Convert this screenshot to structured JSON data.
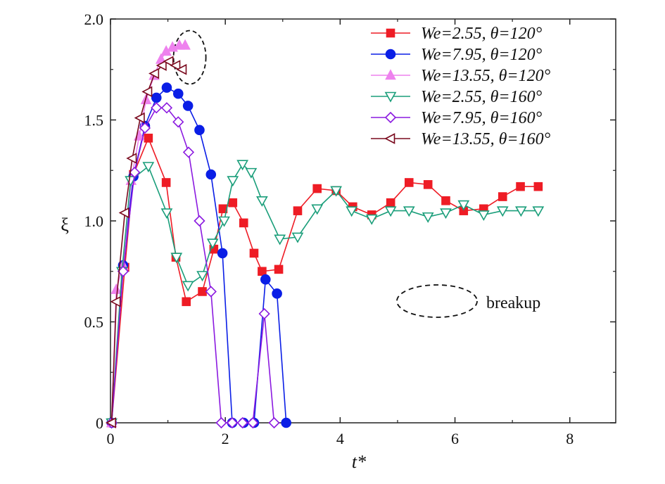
{
  "chart_data": {
    "type": "line",
    "xlabel": "t*",
    "ylabel": "ξ",
    "xlim": [
      0,
      8.8
    ],
    "ylim": [
      0,
      2.0
    ],
    "xticks": [
      "0",
      "2",
      "4",
      "6",
      "8"
    ],
    "yticks": [
      "0",
      "0.5",
      "1.0",
      "1.5",
      "2.0"
    ],
    "grid": false,
    "legend_position": "top-right",
    "series": [
      {
        "name": "We=2.55, θ=120°",
        "color": "#ee1c25",
        "marker": "square",
        "filled": true,
        "points": [
          [
            0.02,
            0.0
          ],
          [
            0.25,
            0.77
          ],
          [
            0.4,
            1.23
          ],
          [
            0.66,
            1.41
          ],
          [
            0.97,
            1.19
          ],
          [
            1.14,
            0.82
          ],
          [
            1.32,
            0.6
          ],
          [
            1.6,
            0.65
          ],
          [
            1.8,
            0.86
          ],
          [
            1.96,
            1.06
          ],
          [
            2.13,
            1.09
          ],
          [
            2.32,
            0.99
          ],
          [
            2.5,
            0.84
          ],
          [
            2.64,
            0.75
          ],
          [
            2.93,
            0.76
          ],
          [
            3.26,
            1.05
          ],
          [
            3.6,
            1.16
          ],
          [
            3.93,
            1.15
          ],
          [
            4.22,
            1.07
          ],
          [
            4.55,
            1.03
          ],
          [
            4.88,
            1.09
          ],
          [
            5.2,
            1.19
          ],
          [
            5.53,
            1.18
          ],
          [
            5.84,
            1.1
          ],
          [
            6.15,
            1.05
          ],
          [
            6.5,
            1.06
          ],
          [
            6.83,
            1.12
          ],
          [
            7.14,
            1.17
          ],
          [
            7.45,
            1.17
          ]
        ]
      },
      {
        "name": "We=7.95, θ=120°",
        "color": "#0a1ee6",
        "marker": "circle",
        "filled": true,
        "points": [
          [
            0.02,
            0.0
          ],
          [
            0.22,
            0.78
          ],
          [
            0.4,
            1.22
          ],
          [
            0.6,
            1.47
          ],
          [
            0.8,
            1.61
          ],
          [
            0.98,
            1.66
          ],
          [
            1.18,
            1.63
          ],
          [
            1.35,
            1.57
          ],
          [
            1.55,
            1.45
          ],
          [
            1.75,
            1.23
          ],
          [
            1.95,
            0.84
          ],
          [
            2.12,
            0.0
          ],
          [
            2.32,
            0.0
          ],
          [
            2.5,
            0.0
          ],
          [
            2.7,
            0.71
          ],
          [
            2.9,
            0.64
          ],
          [
            3.06,
            0.0
          ]
        ]
      },
      {
        "name": "We=13.55, θ=120°",
        "color": "#ee82ee",
        "marker": "triangle-up",
        "filled": true,
        "points": [
          [
            0.02,
            0.0
          ],
          [
            0.1,
            0.66
          ],
          [
            0.22,
            0.78
          ],
          [
            0.36,
            1.2
          ],
          [
            0.5,
            1.42
          ],
          [
            0.62,
            1.6
          ],
          [
            0.76,
            1.72
          ],
          [
            0.88,
            1.8
          ],
          [
            0.97,
            1.84
          ],
          [
            1.08,
            1.86
          ],
          [
            1.2,
            1.87
          ],
          [
            1.3,
            1.87
          ]
        ]
      },
      {
        "name": "We=2.55, θ=160°",
        "color": "#1a9e7a",
        "marker": "triangle-down",
        "filled": false,
        "points": [
          [
            0.02,
            0.0
          ],
          [
            0.2,
            0.75
          ],
          [
            0.35,
            1.2
          ],
          [
            0.66,
            1.27
          ],
          [
            0.98,
            1.04
          ],
          [
            1.15,
            0.82
          ],
          [
            1.35,
            0.68
          ],
          [
            1.6,
            0.73
          ],
          [
            1.78,
            0.89
          ],
          [
            1.98,
            1.0
          ],
          [
            2.13,
            1.2
          ],
          [
            2.3,
            1.28
          ],
          [
            2.45,
            1.24
          ],
          [
            2.64,
            1.1
          ],
          [
            2.95,
            0.91
          ],
          [
            3.26,
            0.92
          ],
          [
            3.6,
            1.06
          ],
          [
            3.93,
            1.15
          ],
          [
            4.2,
            1.05
          ],
          [
            4.55,
            1.01
          ],
          [
            4.88,
            1.05
          ],
          [
            5.2,
            1.05
          ],
          [
            5.53,
            1.02
          ],
          [
            5.84,
            1.04
          ],
          [
            6.15,
            1.08
          ],
          [
            6.5,
            1.03
          ],
          [
            6.83,
            1.05
          ],
          [
            7.15,
            1.05
          ],
          [
            7.45,
            1.05
          ]
        ]
      },
      {
        "name": "We=7.95, θ=160°",
        "color": "#8b1ae0",
        "marker": "diamond",
        "filled": false,
        "points": [
          [
            0.02,
            0.0
          ],
          [
            0.22,
            0.75
          ],
          [
            0.42,
            1.24
          ],
          [
            0.6,
            1.46
          ],
          [
            0.8,
            1.56
          ],
          [
            0.98,
            1.56
          ],
          [
            1.18,
            1.49
          ],
          [
            1.36,
            1.34
          ],
          [
            1.55,
            1.0
          ],
          [
            1.75,
            0.65
          ],
          [
            1.93,
            0.0
          ],
          [
            2.12,
            0.0
          ],
          [
            2.3,
            0.0
          ],
          [
            2.48,
            0.0
          ],
          [
            2.68,
            0.54
          ],
          [
            2.85,
            0.0
          ]
        ]
      },
      {
        "name": "We=13.55, θ=160°",
        "color": "#7a0a1e",
        "marker": "triangle-left",
        "filled": false,
        "points": [
          [
            0.02,
            0.0
          ],
          [
            0.1,
            0.6
          ],
          [
            0.25,
            1.04
          ],
          [
            0.38,
            1.31
          ],
          [
            0.52,
            1.51
          ],
          [
            0.65,
            1.64
          ],
          [
            0.77,
            1.73
          ],
          [
            0.9,
            1.77
          ],
          [
            1.02,
            1.79
          ],
          [
            1.14,
            1.77
          ],
          [
            1.25,
            1.75
          ]
        ]
      }
    ],
    "annotation": {
      "text": "breakup"
    }
  }
}
